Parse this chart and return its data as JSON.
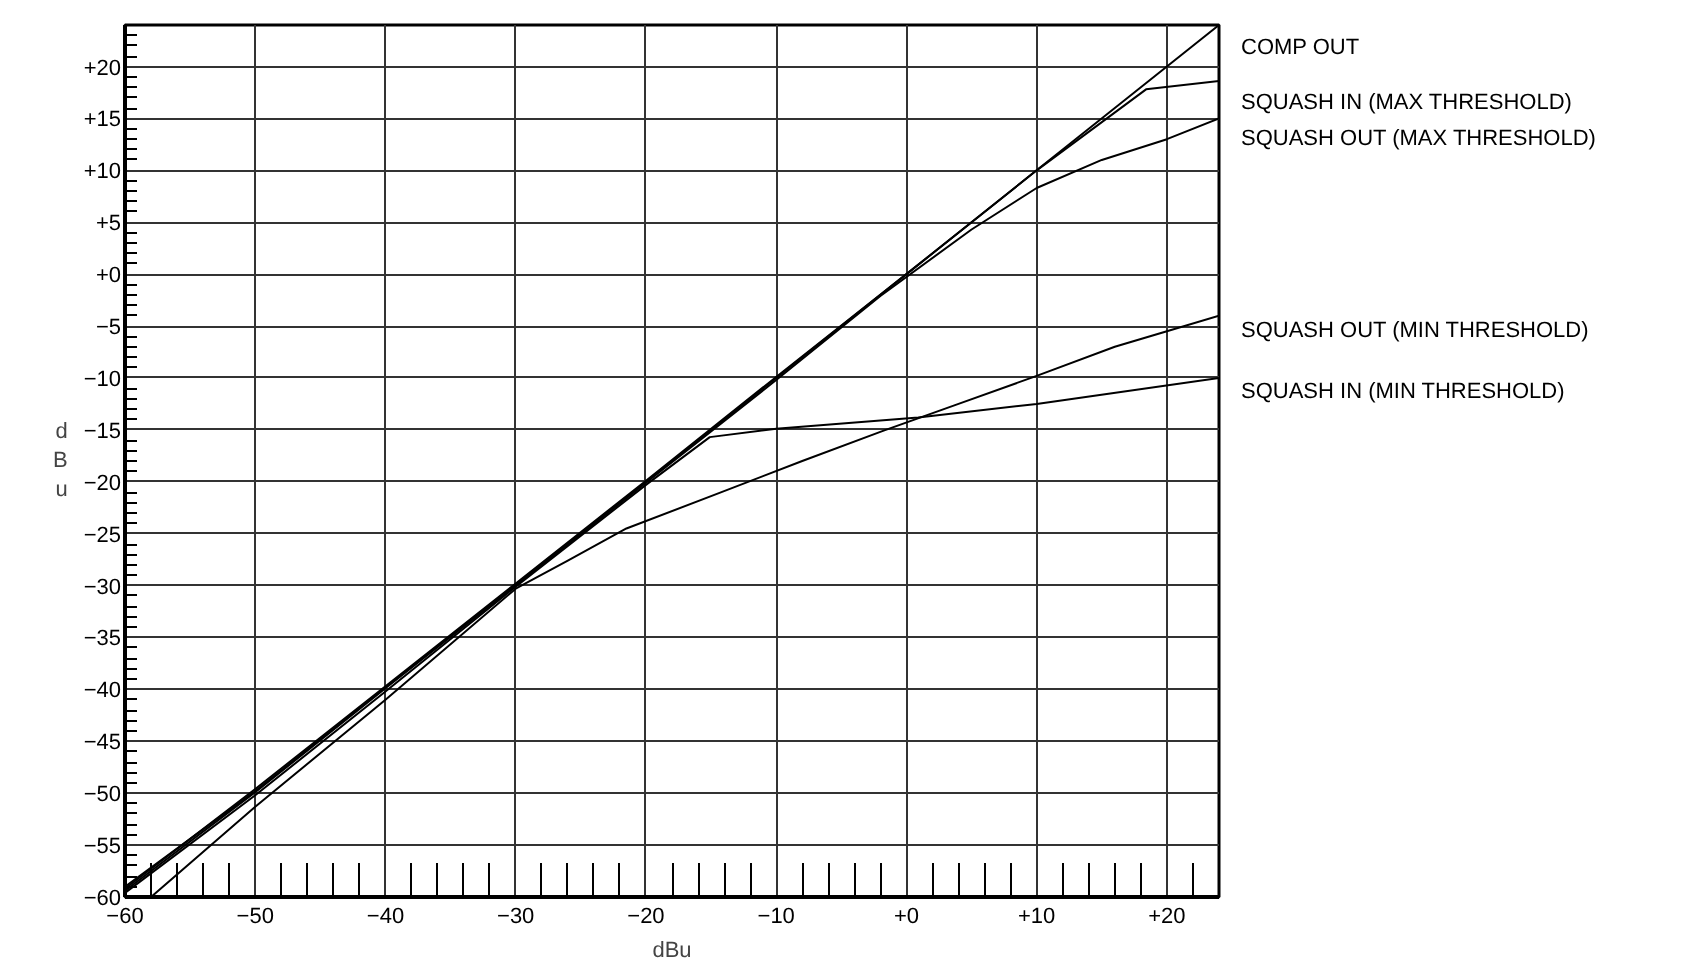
{
  "chart_data": {
    "type": "line",
    "xlabel": "dBu",
    "ylabel": "dBu",
    "xlim": [
      -60,
      24
    ],
    "ylim": [
      -60,
      24
    ],
    "xticks": [
      -60,
      -50,
      -40,
      -30,
      -20,
      -10,
      {
        "value": 0,
        "label": "+0"
      },
      {
        "value": 10,
        "label": "+10"
      },
      {
        "value": 20,
        "label": "+20"
      }
    ],
    "yticks": [
      -60,
      -55,
      -50,
      -45,
      -40,
      -35,
      -30,
      -25,
      -20,
      -15,
      -10,
      -5,
      {
        "value": 0,
        "label": "+0"
      },
      {
        "value": 5,
        "label": "+5"
      },
      {
        "value": 10,
        "label": "+10"
      },
      {
        "value": 15,
        "label": "+15"
      },
      {
        "value": 20,
        "label": "+20"
      }
    ],
    "grid": true,
    "marker": "none",
    "line_style": "solid",
    "series": [
      {
        "name": "COMP OUT",
        "color": "#000000",
        "x": [
          -60,
          -50,
          -40,
          -30,
          -20,
          -10,
          0,
          10,
          20,
          24
        ],
        "values": [
          -59.2,
          -49.6,
          -39.7,
          -29.8,
          -19.9,
          -9.9,
          0,
          10,
          20,
          24
        ]
      },
      {
        "name": "SQUASH IN (MAX THRESHOLD)",
        "color": "#000000",
        "x": [
          -60,
          -50,
          -40,
          -30,
          -20,
          -10,
          0,
          10,
          18.4,
          24
        ],
        "values": [
          -59,
          -49.8,
          -39.8,
          -29.9,
          -20,
          -10,
          0,
          10,
          17.8,
          18.6
        ]
      },
      {
        "name": "SQUASH OUT (MAX THRESHOLD)",
        "color": "#000000",
        "x": [
          -60,
          -50,
          -40,
          -30,
          -20,
          -10,
          -2,
          5,
          10,
          15,
          20,
          24
        ],
        "values": [
          -59.4,
          -49.9,
          -39.9,
          -30,
          -20.1,
          -10.2,
          -2.1,
          4.3,
          8.3,
          11,
          13,
          15
        ]
      },
      {
        "name": "SQUASH OUT (MIN THRESHOLD)",
        "color": "#000000",
        "x": [
          -58,
          -50,
          -40,
          -30,
          -26,
          -21.5,
          -14.4,
          -8,
          -1.8,
          4,
          10,
          16,
          20,
          24
        ],
        "values": [
          -60,
          -51.3,
          -41,
          -30.3,
          -27.6,
          -24.5,
          -21.1,
          -18,
          -15.1,
          -12.5,
          -9.8,
          -7,
          -5.5,
          -4
        ]
      },
      {
        "name": "SQUASH IN (MIN THRESHOLD)",
        "color": "#000000",
        "x": [
          -60,
          -50,
          -40,
          -30,
          -20,
          -15.1,
          -10,
          0.9,
          10,
          24
        ],
        "values": [
          -59.6,
          -50.2,
          -40.2,
          -30.1,
          -20.3,
          -15.7,
          -14.9,
          -13.8,
          -12.5,
          -10
        ]
      }
    ]
  }
}
